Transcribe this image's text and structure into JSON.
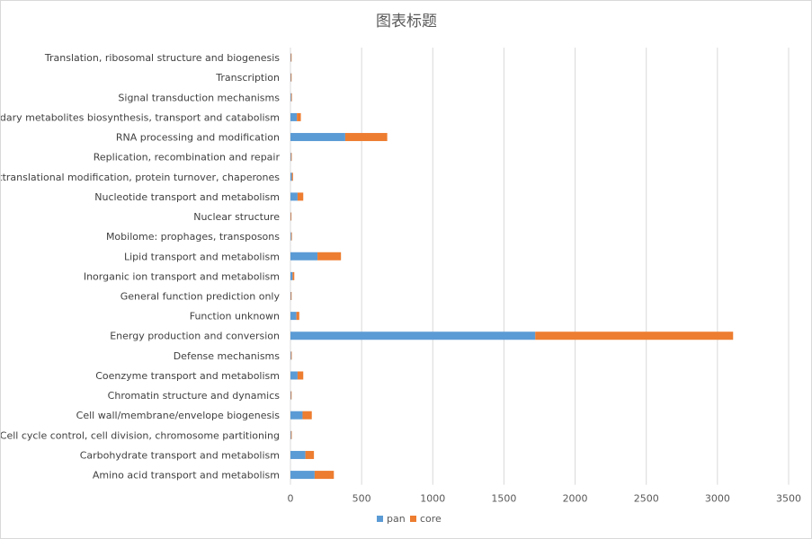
{
  "chart_data": {
    "type": "bar",
    "orientation": "horizontal",
    "stacked": true,
    "title": "图表标题",
    "categories": [
      "Amino acid transport and metabolism",
      "Carbohydrate transport and metabolism",
      "Cell cycle control, cell division, chromosome partitioning",
      "Cell wall/membrane/envelope biogenesis",
      "Chromatin structure and dynamics",
      "Coenzyme transport and metabolism",
      "Defense mechanisms",
      "Energy production and conversion",
      "Function unknown",
      "General function prediction only",
      "Inorganic ion transport and metabolism",
      "Lipid transport and metabolism",
      "Mobilome: prophages, transposons",
      "Nuclear structure",
      "Nucleotide transport and metabolism",
      "Posttranslational modification, protein turnover, chaperones",
      "Replication, recombination and repair",
      "RNA processing and modification",
      "Secondary metabolites biosynthesis, transport and catabolism",
      "Signal transduction mechanisms",
      "Transcription",
      "Translation, ribosomal structure and biogenesis"
    ],
    "series": [
      {
        "name": "pan",
        "color": "#5b9bd5",
        "values": [
          170,
          105,
          4,
          85,
          3,
          50,
          4,
          1720,
          42,
          3,
          15,
          190,
          5,
          2,
          50,
          10,
          4,
          385,
          45,
          5,
          3,
          3
        ]
      },
      {
        "name": "core",
        "color": "#ed7d31",
        "values": [
          135,
          60,
          4,
          65,
          2,
          40,
          4,
          1390,
          20,
          3,
          12,
          165,
          3,
          2,
          40,
          8,
          3,
          295,
          28,
          3,
          3,
          4
        ]
      }
    ],
    "xlim": [
      0,
      3500
    ],
    "x_ticks": [
      0,
      500,
      1000,
      1500,
      2000,
      2500,
      3000,
      3500
    ],
    "grid": "vertical",
    "legend_position": "bottom"
  }
}
